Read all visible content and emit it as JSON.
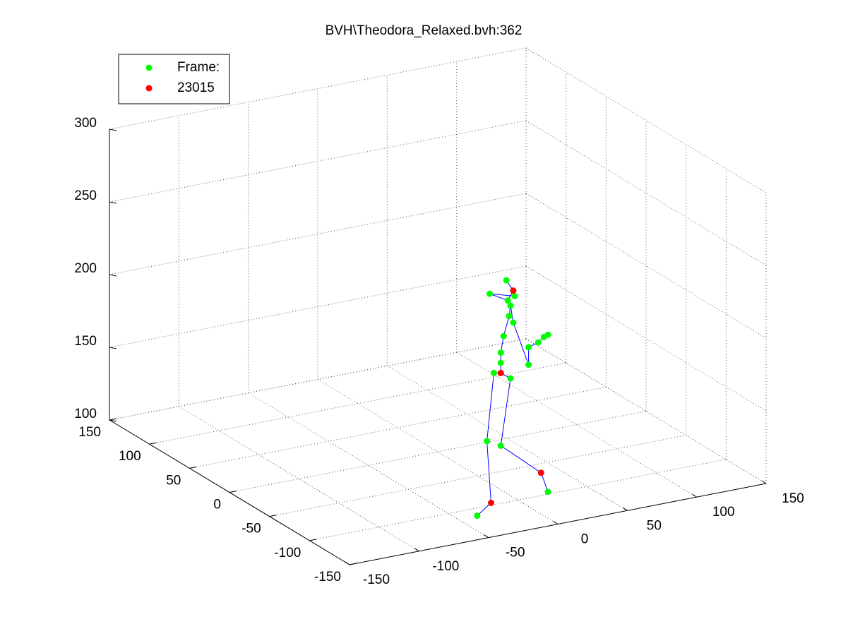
{
  "chart_data": {
    "type": "scatter3d",
    "title": "BVH\\Theodora_Relaxed.bvh:362",
    "xlim": [
      -150,
      150
    ],
    "xticks": [
      -150,
      -100,
      -50,
      0,
      50,
      100,
      150
    ],
    "ylim": [
      -150,
      150
    ],
    "yticks": [
      -150,
      -100,
      -50,
      0,
      50,
      100,
      150
    ],
    "zlim": [
      100,
      300
    ],
    "zticks": [
      100,
      150,
      200,
      250,
      300
    ],
    "grid": true,
    "legend": "upper left",
    "lines": [
      {
        "color": "#0000ff",
        "x": [
          -35,
          -25,
          -28,
          -23,
          -18,
          -11,
          -18,
          11,
          16,
          null,
          -18,
          -18,
          -18,
          -16,
          -12,
          -11,
          -13,
          -9,
          -14,
          null,
          -11,
          -9,
          2,
          2,
          9,
          13,
          16,
          null,
          -13,
          -26,
          -8
        ],
        "y": [
          -110,
          -110,
          -110,
          -110,
          -110,
          -110,
          -110,
          -110,
          -110,
          null,
          -110,
          -110,
          -110,
          -110,
          -110,
          -110,
          -110,
          -110,
          -110,
          null,
          -110,
          -110,
          -110,
          -110,
          -110,
          -110,
          -110,
          null,
          -110,
          -110,
          -110
        ],
        "z": [
          99,
          106,
          149,
          195,
          194,
          189,
          144,
          120,
          106,
          null,
          194,
          201,
          208,
          219,
          232,
          239,
          243,
          249,
          257,
          null,
          239,
          227,
          196,
          208,
          210,
          213,
          214,
          null,
          243,
          250,
          245
        ]
      }
    ],
    "series": [
      {
        "name": "Frame:",
        "color": "#00ff00",
        "x": [
          -14,
          -26,
          -13,
          -8,
          -11,
          -12,
          -9,
          -16,
          -18,
          -18,
          -23,
          -11,
          -28,
          -18,
          16,
          -35,
          2,
          2,
          9,
          13,
          16
        ],
        "y": [
          -110,
          -110,
          -110,
          -110,
          -110,
          -110,
          -110,
          -110,
          -110,
          -110,
          -110,
          -110,
          -110,
          -110,
          -110,
          -110,
          -110,
          -110,
          -110,
          -110,
          -110
        ],
        "z": [
          257,
          250,
          243,
          245,
          239,
          232,
          227,
          219,
          208,
          201,
          195,
          189,
          149,
          144,
          106,
          99,
          208,
          196,
          210,
          213,
          214
        ]
      },
      {
        "name": "23015",
        "color": "#ff0000",
        "x": [
          -9,
          -18,
          11,
          -25
        ],
        "y": [
          -110,
          -110,
          -110,
          -110
        ],
        "z": [
          249,
          194,
          120,
          106
        ]
      }
    ]
  }
}
